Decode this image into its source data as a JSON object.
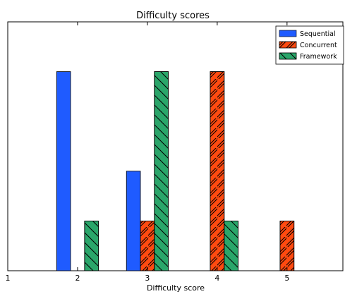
{
  "chart_data": {
    "type": "bar",
    "title": "Difficulty scores",
    "xlabel": "Difficulty score",
    "ylabel": "",
    "xlim": [
      1,
      5.8
    ],
    "ylim": [
      0,
      5
    ],
    "x_ticks": [
      1,
      2,
      3,
      4,
      5
    ],
    "x_tick_labels": [
      "1",
      "2",
      "3",
      "4",
      "5"
    ],
    "grid": false,
    "legend_position": "top-right",
    "series": [
      {
        "name": "Sequential",
        "color": "#1f5bff",
        "hatch": "none",
        "points": [
          {
            "x": 1.8,
            "y": 4
          },
          {
            "x": 2.8,
            "y": 2
          }
        ]
      },
      {
        "name": "Concurrent",
        "color": "#ff4a10",
        "hatch": "forward",
        "points": [
          {
            "x": 3.0,
            "y": 1
          },
          {
            "x": 4.0,
            "y": 4
          },
          {
            "x": 5.0,
            "y": 1
          }
        ]
      },
      {
        "name": "Framework",
        "color": "#2aa66a",
        "hatch": "back",
        "points": [
          {
            "x": 2.2,
            "y": 1
          },
          {
            "x": 3.2,
            "y": 4
          },
          {
            "x": 4.2,
            "y": 1
          }
        ]
      }
    ]
  }
}
